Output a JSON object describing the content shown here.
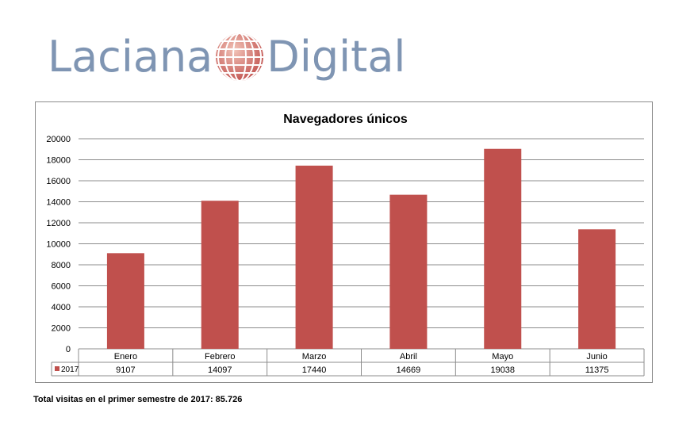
{
  "logo": {
    "word1": "Laciana",
    "word2": "Digital"
  },
  "footer": {
    "text": "Total visitas en el primer semestre de 2017: 85.726"
  },
  "chart_data": {
    "type": "bar",
    "title": "Navegadores únicos",
    "categories": [
      "Enero",
      "Febrero",
      "Marzo",
      "Abril",
      "Mayo",
      "Junio"
    ],
    "series": [
      {
        "name": "2017",
        "values": [
          9107,
          14097,
          17440,
          14669,
          19038,
          11375
        ],
        "color": "#c0504d"
      }
    ],
    "ylim": [
      0,
      20000
    ],
    "yticks": [
      0,
      2000,
      4000,
      6000,
      8000,
      10000,
      12000,
      14000,
      16000,
      18000,
      20000
    ],
    "grid": true,
    "legend": "data-table"
  }
}
